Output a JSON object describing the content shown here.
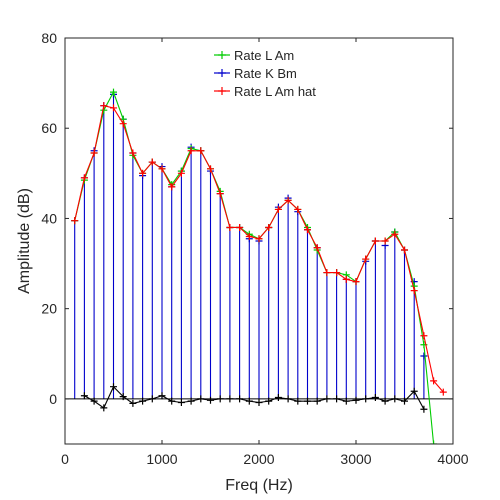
{
  "chart_data": {
    "type": "line",
    "xlabel": "Freq (Hz)",
    "ylabel": "Amplitude (dB)",
    "xlim": [
      0,
      4000
    ],
    "ylim": [
      -10,
      80
    ],
    "xticks": [
      0,
      1000,
      2000,
      3000,
      4000
    ],
    "yticks": [
      0,
      20,
      40,
      60,
      80
    ],
    "grid": false,
    "legend_position": "top-center",
    "x": [
      100,
      200,
      300,
      400,
      500,
      600,
      700,
      800,
      900,
      1000,
      1100,
      1200,
      1300,
      1400,
      1500,
      1600,
      1700,
      1800,
      1900,
      2000,
      2100,
      2200,
      2300,
      2400,
      2500,
      2600,
      2700,
      2800,
      2900,
      3000,
      3100,
      3200,
      3300,
      3400,
      3500,
      3600,
      3700,
      3800,
      3900
    ],
    "series": [
      {
        "name": "Rate L Am",
        "color": "#00cc00",
        "style": "line+plus",
        "x": [
          100,
          200,
          300,
          400,
          500,
          600,
          700,
          800,
          900,
          1000,
          1100,
          1200,
          1300,
          1400,
          1500,
          1600,
          1700,
          1800,
          1900,
          2000,
          2100,
          2200,
          2300,
          2400,
          2500,
          2600,
          2700,
          2800,
          2900,
          3000,
          3100,
          3200,
          3300,
          3400,
          3500,
          3600,
          3700,
          3800
        ],
        "values": [
          39.5,
          48.5,
          54.5,
          64,
          68,
          62,
          54,
          50,
          52.5,
          51,
          47.5,
          50.5,
          55.5,
          55,
          51,
          46,
          38,
          38,
          36.5,
          35.5,
          38,
          42,
          44,
          42,
          38,
          33,
          28,
          28,
          27.5,
          26,
          31,
          35,
          35,
          37,
          33,
          25,
          12,
          -10
        ]
      },
      {
        "name": "Rate K Bm",
        "color": "#0000cc",
        "style": "stem",
        "x": [
          100,
          200,
          300,
          400,
          500,
          600,
          700,
          800,
          900,
          1000,
          1100,
          1200,
          1300,
          1400,
          1500,
          1600,
          1700,
          1800,
          1900,
          2000,
          2100,
          2200,
          2300,
          2400,
          2500,
          2600,
          2700,
          2800,
          2900,
          3000,
          3100,
          3200,
          3300,
          3400,
          3500,
          3600,
          3700
        ],
        "values": [
          39.5,
          49,
          55,
          65,
          67.5,
          62,
          54.5,
          49.5,
          52.5,
          51.5,
          47,
          50.5,
          55.8,
          55,
          50.5,
          45.5,
          38,
          38,
          35.5,
          35,
          38,
          42.5,
          44.5,
          41.5,
          37.5,
          33.5,
          28,
          28,
          26.5,
          26,
          30.5,
          35,
          34,
          37,
          33,
          26,
          9.5
        ]
      },
      {
        "name": "Rate L Am hat",
        "color": "#ff0000",
        "style": "line+plus",
        "x": [
          100,
          200,
          300,
          400,
          500,
          600,
          700,
          800,
          900,
          1000,
          1100,
          1200,
          1300,
          1400,
          1500,
          1600,
          1700,
          1800,
          1900,
          2000,
          2100,
          2200,
          2300,
          2400,
          2500,
          2600,
          2700,
          2800,
          2900,
          3000,
          3100,
          3200,
          3300,
          3400,
          3500,
          3600,
          3700,
          3800,
          3900
        ],
        "values": [
          39.5,
          49,
          54.5,
          65,
          64.5,
          61,
          54.5,
          50,
          52.5,
          51,
          47,
          50,
          55,
          55,
          51,
          45.5,
          38,
          38,
          36,
          35.5,
          38,
          42,
          44,
          42,
          37.5,
          33.5,
          28,
          28,
          26.5,
          26,
          31,
          35,
          35,
          36.5,
          33,
          24,
          14,
          4,
          1.5
        ]
      },
      {
        "color": "#000000",
        "style": "line+plus",
        "x": [
          200,
          300,
          400,
          500,
          600,
          700,
          800,
          900,
          1000,
          1100,
          1200,
          1300,
          1400,
          1500,
          1600,
          1700,
          1800,
          1900,
          2000,
          2100,
          2200,
          2300,
          2400,
          2500,
          2600,
          2700,
          2800,
          2900,
          3000,
          3100,
          3200,
          3300,
          3400,
          3500,
          3600,
          3700
        ],
        "values": [
          0.7,
          -0.5,
          -2,
          2.7,
          0.5,
          -1,
          -0.5,
          0,
          0.7,
          -0.5,
          -0.8,
          -0.5,
          0,
          -0.3,
          0,
          0,
          0,
          -0.5,
          -0.8,
          -0.5,
          0.3,
          0,
          -0.5,
          -0.5,
          -0.5,
          0,
          0,
          -0.5,
          -0.3,
          0,
          0.3,
          -0.5,
          0,
          -0.5,
          1.7,
          -2.3
        ]
      }
    ]
  }
}
